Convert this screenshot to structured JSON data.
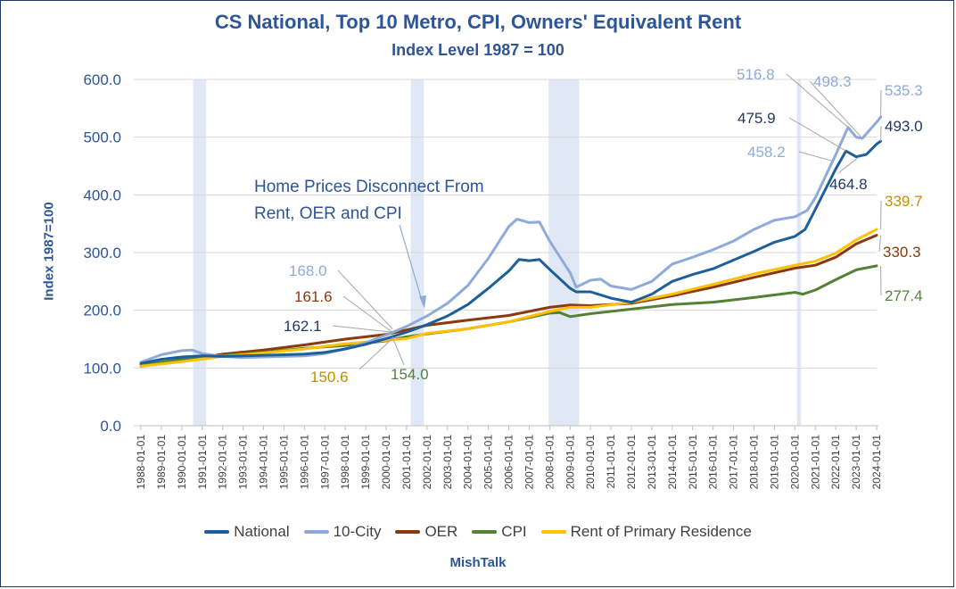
{
  "chart_data": {
    "type": "line",
    "title": "CS National, Top 10 Metro, CPI, Owners' Equivalent Rent",
    "subtitle": "Index Level 1987 = 100",
    "ylabel": "Index 1987=100",
    "source": "MishTalk",
    "ylim": [
      0,
      600
    ],
    "yticks": [
      "0.0",
      "100.0",
      "200.0",
      "300.0",
      "400.0",
      "500.0",
      "600.0"
    ],
    "xticks": [
      "1988-01-01",
      "1989-01-01",
      "1990-01-01",
      "1991-01-01",
      "1992-01-01",
      "1993-01-01",
      "1994-01-01",
      "1995-01-01",
      "1996-01-01",
      "1997-01-01",
      "1998-01-01",
      "1999-01-01",
      "2000-01-01",
      "2001-01-01",
      "2002-01-01",
      "2003-01-01",
      "2004-01-01",
      "2005-01-01",
      "2006-01-01",
      "2007-01-01",
      "2008-01-01",
      "2009-01-01",
      "2010-01-01",
      "2011-01-01",
      "2012-01-01",
      "2013-01-01",
      "2014-01-01",
      "2015-01-01",
      "2016-01-01",
      "2017-01-01",
      "2018-01-01",
      "2019-01-01",
      "2020-01-01",
      "2021-01-01",
      "2022-01-01",
      "2023-01-01",
      "2024-01-01"
    ],
    "recessions": [
      [
        1990.55,
        1991.2
      ],
      [
        2001.2,
        2001.85
      ],
      [
        2007.95,
        2009.45
      ],
      [
        2020.1,
        2020.3
      ]
    ],
    "series": [
      {
        "name": "National",
        "color": "#1f5f99",
        "points": [
          [
            1988,
            108
          ],
          [
            1989,
            115
          ],
          [
            1990,
            119
          ],
          [
            1991,
            121
          ],
          [
            1992,
            120
          ],
          [
            1993,
            121
          ],
          [
            1994,
            122
          ],
          [
            1995,
            123
          ],
          [
            1996,
            124
          ],
          [
            1997,
            127
          ],
          [
            1998,
            133
          ],
          [
            1999,
            141
          ],
          [
            2000,
            151
          ],
          [
            2001,
            162
          ],
          [
            2002,
            175
          ],
          [
            2003,
            190
          ],
          [
            2004,
            210
          ],
          [
            2005,
            238
          ],
          [
            2006,
            268
          ],
          [
            2006.5,
            288
          ],
          [
            2007,
            286
          ],
          [
            2007.5,
            288
          ],
          [
            2008,
            271
          ],
          [
            2009,
            238
          ],
          [
            2009.3,
            232
          ],
          [
            2010,
            232
          ],
          [
            2011,
            221
          ],
          [
            2012,
            214
          ],
          [
            2013,
            228
          ],
          [
            2014,
            250
          ],
          [
            2015,
            262
          ],
          [
            2016,
            272
          ],
          [
            2017,
            287
          ],
          [
            2018,
            302
          ],
          [
            2019,
            318
          ],
          [
            2020,
            328
          ],
          [
            2020.5,
            340
          ],
          [
            2021,
            375
          ],
          [
            2022,
            445
          ],
          [
            2022.5,
            476
          ],
          [
            2023,
            466
          ],
          [
            2023.5,
            470
          ],
          [
            2024,
            488
          ],
          [
            2024.2,
            493
          ]
        ]
      },
      {
        "name": "10-City",
        "color": "#8eaadb",
        "points": [
          [
            1988,
            110
          ],
          [
            1989,
            123
          ],
          [
            1990,
            130
          ],
          [
            1990.5,
            131
          ],
          [
            1991,
            125
          ],
          [
            1992,
            120
          ],
          [
            1993,
            118
          ],
          [
            1994,
            119
          ],
          [
            1995,
            120
          ],
          [
            1996,
            121
          ],
          [
            1997,
            125
          ],
          [
            1998,
            133
          ],
          [
            1999,
            144
          ],
          [
            2000,
            157
          ],
          [
            2001,
            172
          ],
          [
            2002,
            190
          ],
          [
            2003,
            212
          ],
          [
            2004,
            243
          ],
          [
            2005,
            290
          ],
          [
            2006,
            345
          ],
          [
            2006.4,
            358
          ],
          [
            2007,
            352
          ],
          [
            2007.5,
            353
          ],
          [
            2008,
            320
          ],
          [
            2009,
            265
          ],
          [
            2009.3,
            240
          ],
          [
            2010,
            252
          ],
          [
            2010.5,
            254
          ],
          [
            2011,
            242
          ],
          [
            2012,
            236
          ],
          [
            2013,
            250
          ],
          [
            2014,
            280
          ],
          [
            2015,
            292
          ],
          [
            2016,
            305
          ],
          [
            2017,
            320
          ],
          [
            2018,
            340
          ],
          [
            2019,
            356
          ],
          [
            2020,
            362
          ],
          [
            2020.6,
            373
          ],
          [
            2021,
            395
          ],
          [
            2022,
            470
          ],
          [
            2022.6,
            517
          ],
          [
            2023,
            500
          ],
          [
            2023.3,
            498
          ],
          [
            2024,
            526
          ],
          [
            2024.2,
            535
          ]
        ]
      },
      {
        "name": "OER",
        "color": "#8b3a0f",
        "points": [
          [
            1988,
            103
          ],
          [
            1990,
            113
          ],
          [
            1992,
            124
          ],
          [
            1994,
            131
          ],
          [
            1996,
            140
          ],
          [
            1998,
            150
          ],
          [
            2000,
            158
          ],
          [
            2001,
            166
          ],
          [
            2002,
            174
          ],
          [
            2004,
            183
          ],
          [
            2006,
            191
          ],
          [
            2008,
            205
          ],
          [
            2009,
            209
          ],
          [
            2010,
            208
          ],
          [
            2012,
            212
          ],
          [
            2014,
            225
          ],
          [
            2016,
            240
          ],
          [
            2018,
            257
          ],
          [
            2020,
            273
          ],
          [
            2021,
            278
          ],
          [
            2022,
            292
          ],
          [
            2023,
            315
          ],
          [
            2024,
            330
          ]
        ]
      },
      {
        "name": "CPI",
        "color": "#548235",
        "points": [
          [
            1988,
            105
          ],
          [
            1990,
            115
          ],
          [
            1992,
            122
          ],
          [
            1994,
            127
          ],
          [
            1996,
            134
          ],
          [
            1998,
            139
          ],
          [
            2000,
            147
          ],
          [
            2001,
            154
          ],
          [
            2002,
            159
          ],
          [
            2004,
            168
          ],
          [
            2006,
            180
          ],
          [
            2008,
            195
          ],
          [
            2008.5,
            196
          ],
          [
            2009,
            189
          ],
          [
            2010,
            194
          ],
          [
            2012,
            202
          ],
          [
            2014,
            210
          ],
          [
            2016,
            214
          ],
          [
            2018,
            222
          ],
          [
            2020,
            231
          ],
          [
            2020.4,
            228
          ],
          [
            2021,
            235
          ],
          [
            2022,
            253
          ],
          [
            2023,
            270
          ],
          [
            2024,
            277
          ]
        ]
      },
      {
        "name": "Rent of Primary Residence",
        "color": "#ffc000",
        "points": [
          [
            1988,
            103
          ],
          [
            1990,
            111
          ],
          [
            1992,
            120
          ],
          [
            1994,
            126
          ],
          [
            1996,
            133
          ],
          [
            1998,
            142
          ],
          [
            2000,
            148
          ],
          [
            2001,
            151
          ],
          [
            2002,
            160
          ],
          [
            2004,
            168
          ],
          [
            2006,
            180
          ],
          [
            2008,
            198
          ],
          [
            2009,
            205
          ],
          [
            2010,
            205
          ],
          [
            2012,
            214
          ],
          [
            2014,
            228
          ],
          [
            2016,
            245
          ],
          [
            2018,
            263
          ],
          [
            2020,
            278
          ],
          [
            2021,
            285
          ],
          [
            2022,
            299
          ],
          [
            2023,
            322
          ],
          [
            2024,
            340
          ]
        ]
      }
    ],
    "annotation": {
      "text_line1": "Home Prices Disconnect From",
      "text_line2": "Rent, OER and CPI",
      "color": "#2e5597"
    },
    "data_labels": [
      {
        "text": "516.8",
        "color": "#8eaadb",
        "x": 2022.6,
        "y": 517
      },
      {
        "text": "498.3",
        "color": "#8eaadb",
        "x": 2023.3,
        "y": 498
      },
      {
        "text": "535.3",
        "color": "#8eaadb",
        "x": 2024.2,
        "y": 535
      },
      {
        "text": "475.9",
        "color": "#1f3864",
        "x": 2022.5,
        "y": 476
      },
      {
        "text": "493.0",
        "color": "#1f3864",
        "x": 2024.2,
        "y": 493
      },
      {
        "text": "458.2",
        "color": "#8eaadb",
        "x": 2021.9,
        "y": 458
      },
      {
        "text": "464.8",
        "color": "#1f3864",
        "x": 2023.1,
        "y": 465
      },
      {
        "text": "339.7",
        "color": "#c09000",
        "x": 2024.2,
        "y": 340
      },
      {
        "text": "330.3",
        "color": "#8b3a0f",
        "x": 2024.2,
        "y": 330
      },
      {
        "text": "277.4",
        "color": "#548235",
        "x": 2024.2,
        "y": 277
      },
      {
        "text": "168.0",
        "color": "#8eaadb",
        "x": 2000.3,
        "y": 168
      },
      {
        "text": "161.6",
        "color": "#8b3a0f",
        "x": 2000.3,
        "y": 162
      },
      {
        "text": "162.1",
        "color": "#1f3864",
        "x": 2000.3,
        "y": 162
      },
      {
        "text": "150.6",
        "color": "#c09000",
        "x": 2000.3,
        "y": 151
      },
      {
        "text": "154.0",
        "color": "#548235",
        "x": 2000.3,
        "y": 154
      }
    ]
  }
}
